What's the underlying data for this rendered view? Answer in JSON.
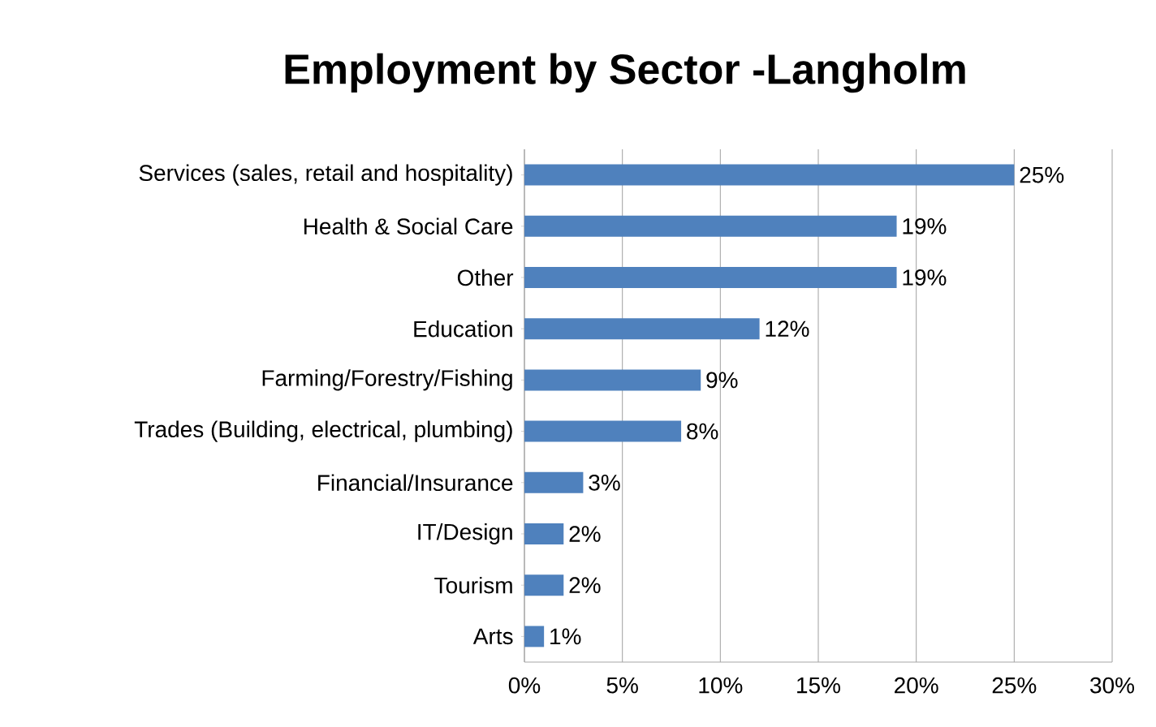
{
  "chart_data": {
    "type": "bar",
    "orientation": "horizontal",
    "title": "Employment by Sector -Langholm",
    "categories": [
      "Services (sales, retail and hospitality)",
      "Health & Social Care",
      "Other",
      "Education",
      "Farming/Forestry/Fishing",
      "Trades (Building, electrical, plumbing)",
      "Financial/Insurance",
      "IT/Design",
      "Tourism",
      "Arts"
    ],
    "values": [
      25,
      19,
      19,
      12,
      9,
      8,
      3,
      2,
      2,
      1
    ],
    "value_labels": [
      "25%",
      "19%",
      "19%",
      "12%",
      "9%",
      "8%",
      "3%",
      "2%",
      "2%",
      "1%"
    ],
    "color": "#4f81bd",
    "xlim": [
      0,
      30
    ],
    "xticks": [
      {
        "value": 0,
        "label": "0%"
      },
      {
        "value": 5,
        "label": "5%"
      },
      {
        "value": 10,
        "label": "10%"
      },
      {
        "value": 15,
        "label": "15%"
      },
      {
        "value": 20,
        "label": "20%"
      },
      {
        "value": 25,
        "label": "25%"
      },
      {
        "value": 30,
        "label": "30%"
      }
    ],
    "grid": "x"
  }
}
